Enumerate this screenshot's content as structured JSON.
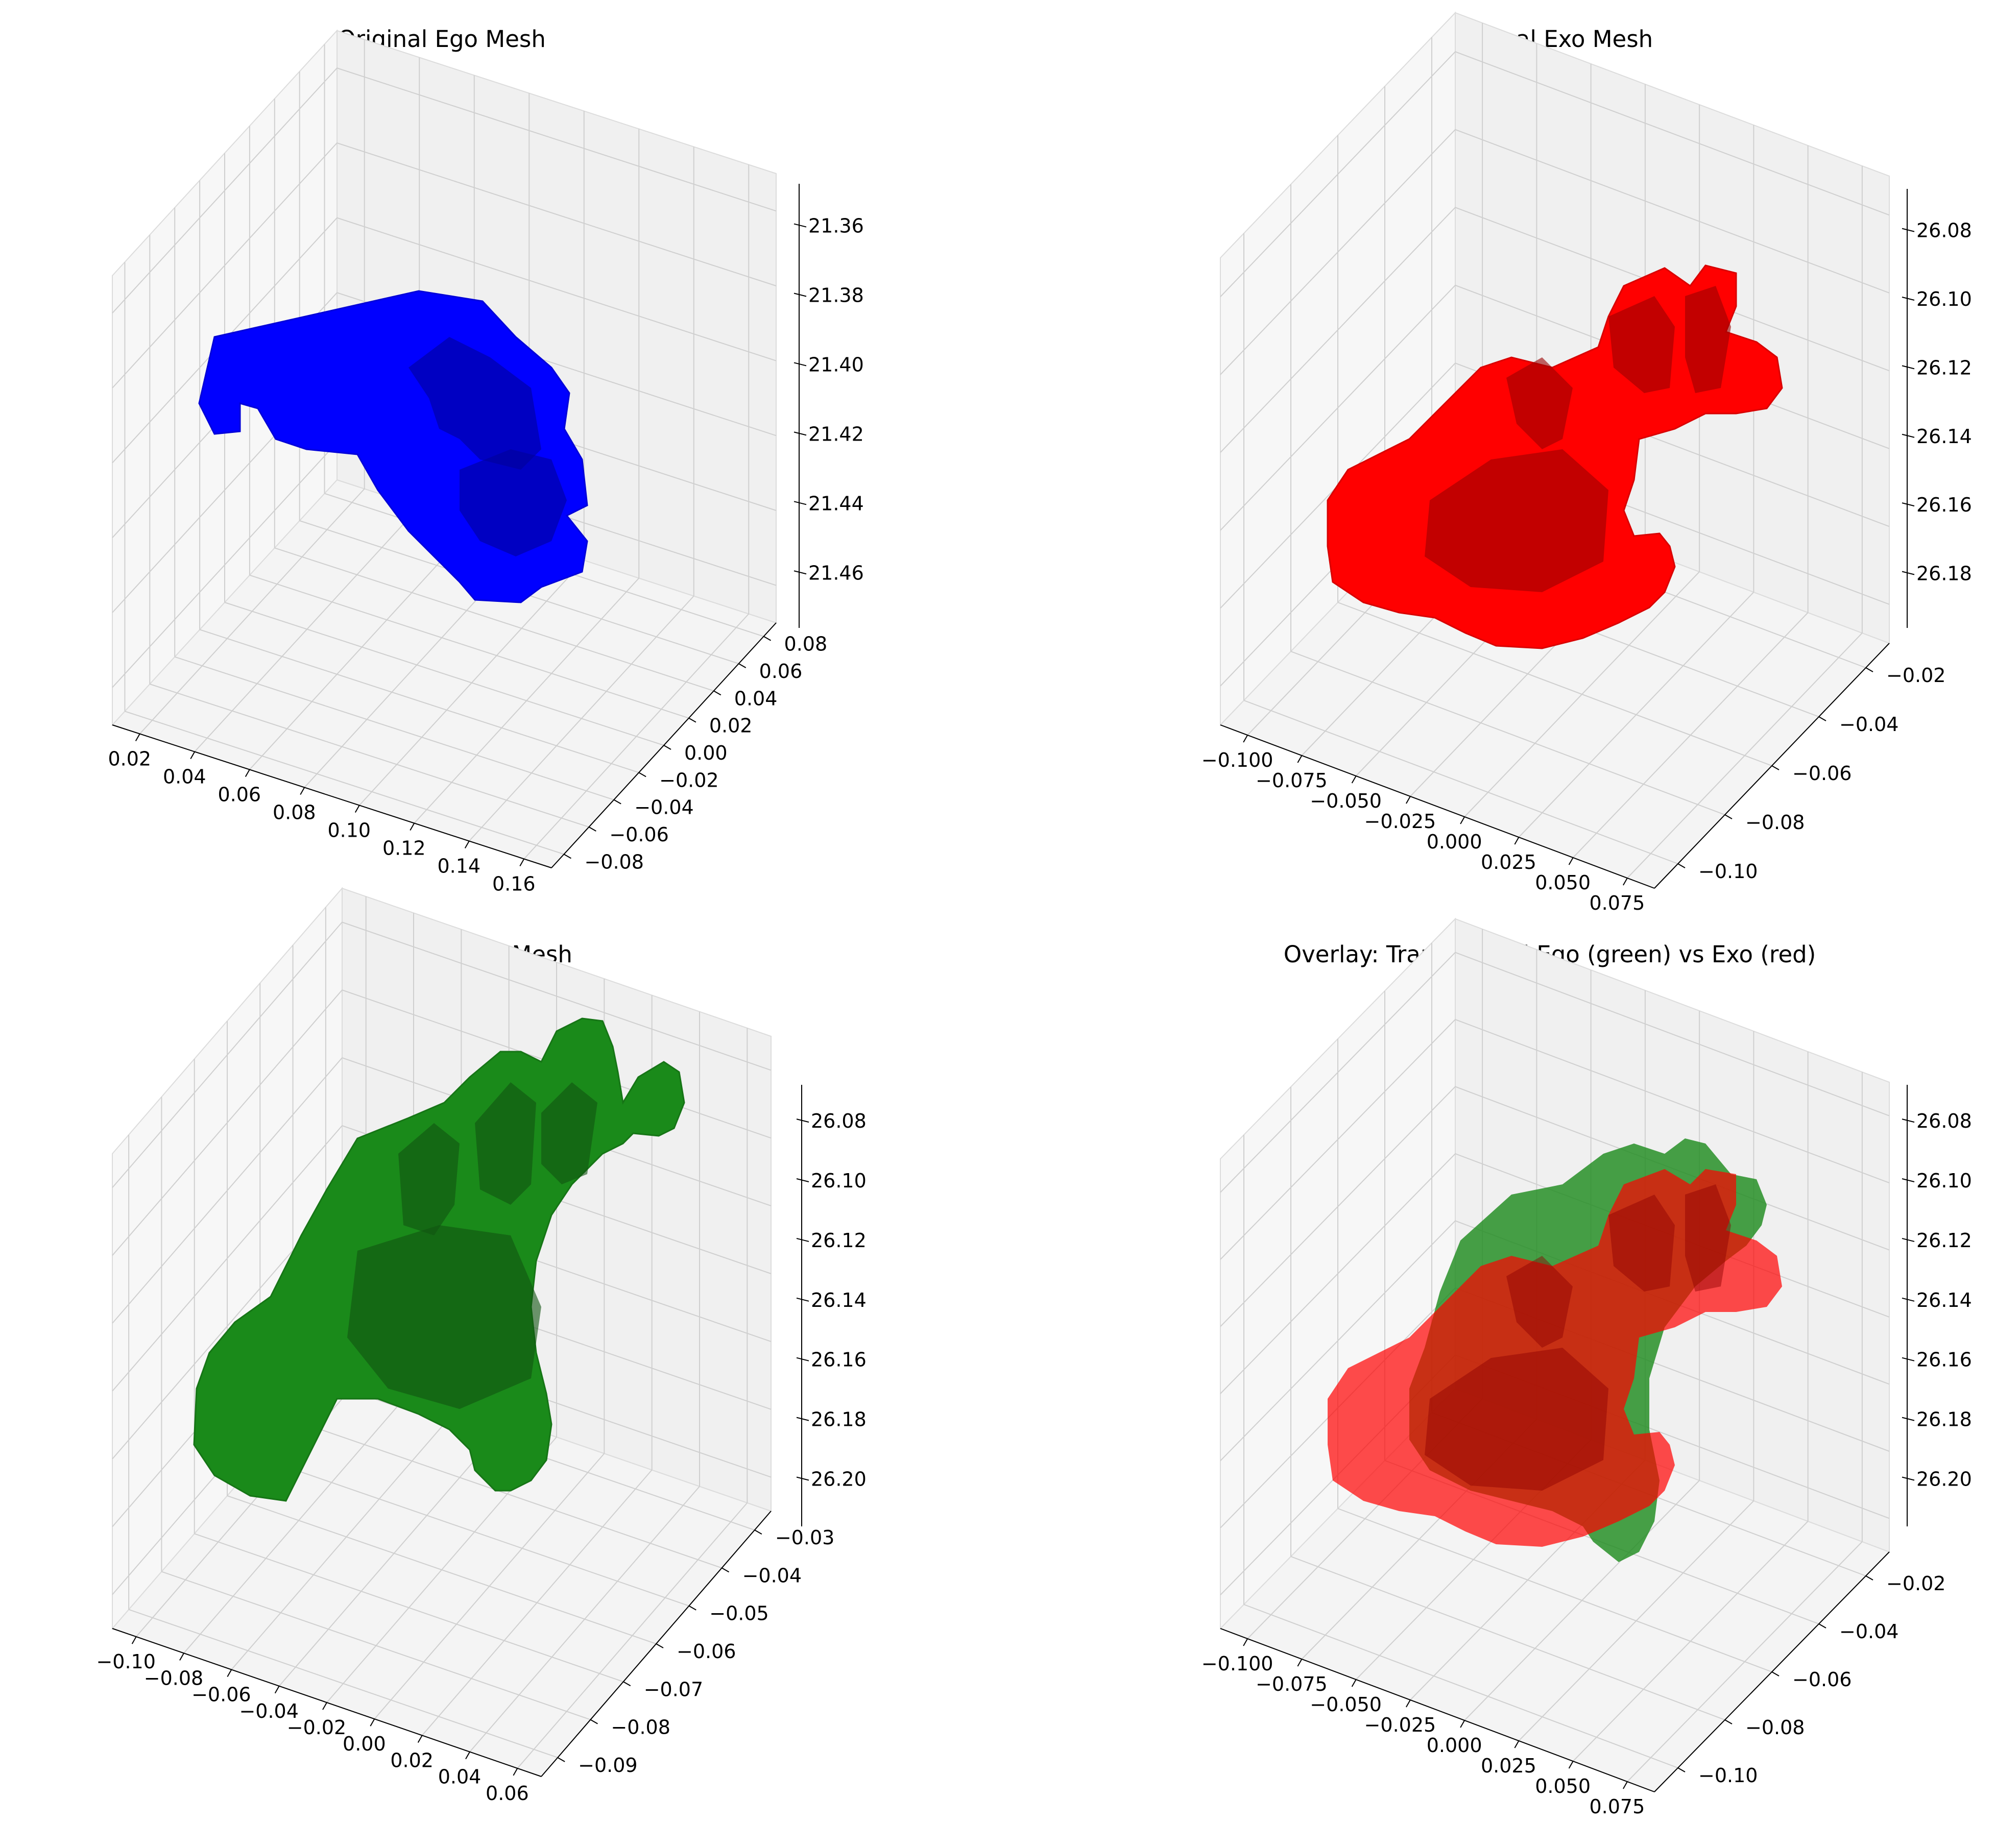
{
  "chart_data": [
    {
      "type": "3d-mesh",
      "title": "Original Ego Mesh",
      "mesh_color": "#0000ff",
      "x_ticks": [
        "0.02",
        "0.04",
        "0.06",
        "0.08",
        "0.10",
        "0.12",
        "0.14",
        "0.16"
      ],
      "y_ticks": [
        "0.08",
        "0.06",
        "0.04",
        "0.02",
        "0.00",
        "−0.02",
        "−0.04",
        "−0.06",
        "−0.08"
      ],
      "z_ticks": [
        "21.36",
        "21.38",
        "21.40",
        "21.42",
        "21.44",
        "21.46"
      ],
      "grid": true
    },
    {
      "type": "3d-mesh",
      "title": "Original Exo Mesh",
      "mesh_color": "#ff0000",
      "x_ticks": [
        "−0.100",
        "−0.075",
        "−0.050",
        "−0.025",
        "0.000",
        "0.025",
        "0.050",
        "0.075"
      ],
      "y_ticks": [
        "−0.02",
        "−0.04",
        "−0.06",
        "−0.08",
        "−0.10"
      ],
      "z_ticks": [
        "26.08",
        "26.10",
        "26.12",
        "26.14",
        "26.16",
        "26.18"
      ],
      "grid": true
    },
    {
      "type": "3d-mesh",
      "title": "Transformed Ego Mesh",
      "mesh_color": "#1a8a1a",
      "x_ticks": [
        "−0.10",
        "−0.08",
        "−0.06",
        "−0.04",
        "−0.02",
        "0.00",
        "0.02",
        "0.04",
        "0.06"
      ],
      "y_ticks": [
        "−0.03",
        "−0.04",
        "−0.05",
        "−0.06",
        "−0.07",
        "−0.08",
        "−0.09"
      ],
      "z_ticks": [
        "26.08",
        "26.10",
        "26.12",
        "26.14",
        "26.16",
        "26.18",
        "26.20"
      ],
      "grid": true
    },
    {
      "type": "3d-mesh",
      "title": "Overlay: Transformed Ego (green) vs Exo (red)",
      "mesh_colors": [
        "#1a8a1a",
        "#ff0000"
      ],
      "x_ticks": [
        "−0.100",
        "−0.075",
        "−0.050",
        "−0.025",
        "0.000",
        "0.025",
        "0.050",
        "0.075"
      ],
      "y_ticks": [
        "−0.02",
        "−0.04",
        "−0.06",
        "−0.08",
        "−0.10"
      ],
      "z_ticks": [
        "26.08",
        "26.10",
        "26.12",
        "26.14",
        "26.16",
        "26.18",
        "26.20"
      ],
      "grid": true
    }
  ]
}
